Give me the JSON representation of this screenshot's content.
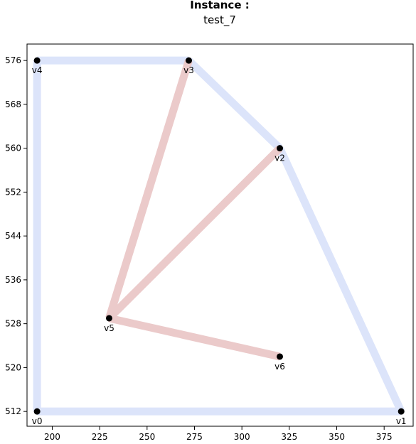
{
  "chart_data": {
    "type": "scatter",
    "title": "Instance :",
    "subtitle": "test_7",
    "xlabel": "",
    "ylabel": "",
    "xlim": [
      186.7,
      390.3
    ],
    "ylim": [
      509.3,
      579.0
    ],
    "grid": false,
    "xticks": [
      200,
      225,
      250,
      275,
      300,
      325,
      350,
      375
    ],
    "yticks": [
      512,
      520,
      528,
      536,
      544,
      552,
      560,
      568,
      576
    ],
    "vertices": [
      {
        "name": "v0",
        "x": 192,
        "y": 512
      },
      {
        "name": "v1",
        "x": 384,
        "y": 512
      },
      {
        "name": "v2",
        "x": 320,
        "y": 560
      },
      {
        "name": "v3",
        "x": 272,
        "y": 576
      },
      {
        "name": "v4",
        "x": 192,
        "y": 576
      },
      {
        "name": "v5",
        "x": 230,
        "y": 529
      },
      {
        "name": "v6",
        "x": 320,
        "y": 522
      }
    ],
    "boundary_edges": [
      [
        0,
        1
      ],
      [
        1,
        2
      ],
      [
        2,
        3
      ],
      [
        3,
        4
      ],
      [
        4,
        0
      ]
    ],
    "inner_edges": [
      [
        5,
        3
      ],
      [
        5,
        2
      ],
      [
        5,
        6
      ]
    ],
    "colors": {
      "boundary_edge": "#dce4fa",
      "inner_edge": "#ebcaca",
      "vertex": "#000000",
      "axes": "#000000",
      "background": "#ffffff"
    }
  }
}
